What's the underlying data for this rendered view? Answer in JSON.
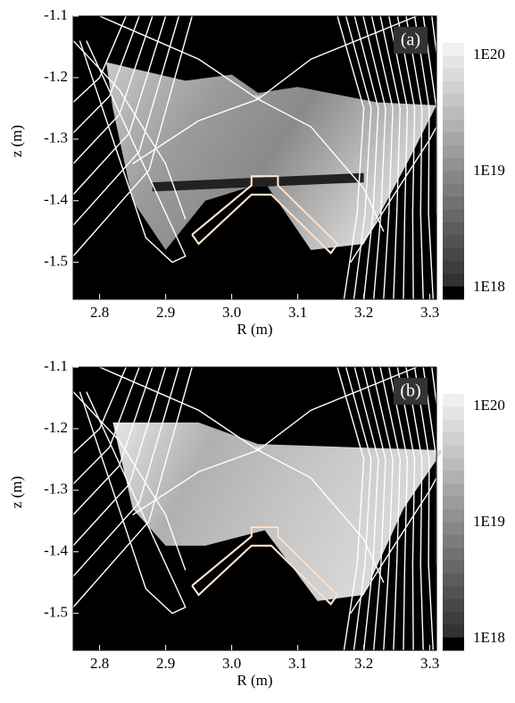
{
  "chart_data": [
    {
      "type": "contour",
      "panel_label": "(a)",
      "x_label": "R (m)",
      "y_label": "z (m)",
      "xlim": [
        2.76,
        3.31
      ],
      "ylim": [
        -1.56,
        -1.1
      ],
      "xticks": [
        2.8,
        2.9,
        {
          "value": 3,
          "label": "3.0"
        },
        3.1,
        3.2,
        3.3
      ],
      "yticks": [
        -1.1,
        -1.2,
        -1.3,
        -1.4,
        -1.5
      ],
      "colorbar": {
        "log": true,
        "clim": [
          1e+18,
          1e+20
        ],
        "ticks": [
          {
            "value": 1e+18,
            "label": "1E18"
          },
          {
            "value": 1e+19,
            "label": "1E19"
          },
          {
            "value": 1e+20,
            "label": "1E20"
          }
        ]
      }
    },
    {
      "type": "contour",
      "panel_label": "(b)",
      "x_label": "R (m)",
      "y_label": "z (m)",
      "xlim": [
        2.76,
        3.31
      ],
      "ylim": [
        -1.56,
        -1.1
      ],
      "xticks": [
        2.8,
        2.9,
        {
          "value": 3,
          "label": "3.0"
        },
        3.1,
        3.2,
        3.3
      ],
      "yticks": [
        -1.1,
        -1.2,
        -1.3,
        -1.4,
        -1.5
      ],
      "colorbar": {
        "log": true,
        "clim": [
          1e+18,
          1e+20
        ],
        "ticks": [
          {
            "value": 1e+18,
            "label": "1E18"
          },
          {
            "value": 1e+19,
            "label": "1E19"
          },
          {
            "value": 1e+20,
            "label": "1E20"
          }
        ]
      }
    }
  ]
}
